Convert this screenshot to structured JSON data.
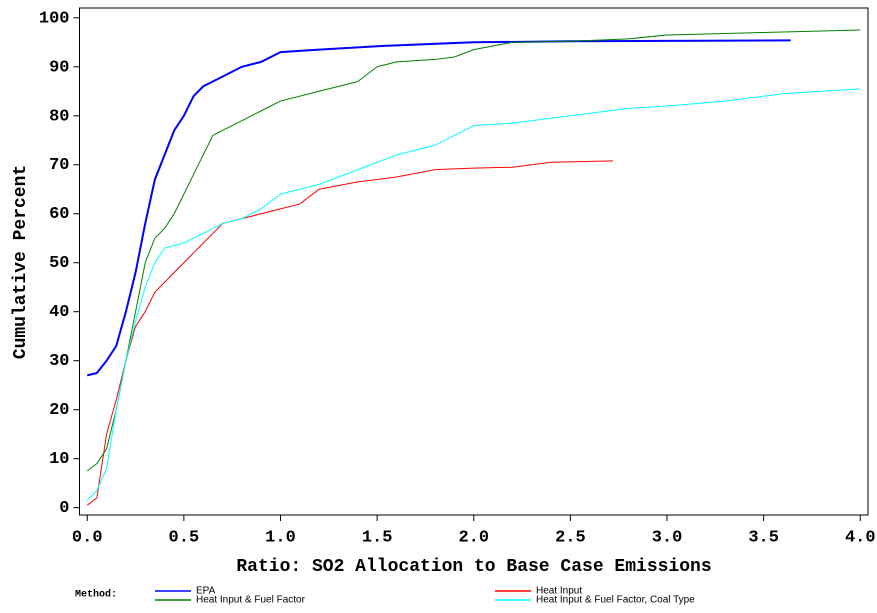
{
  "chart_data": {
    "type": "line",
    "x_label": "Ratio: SO2 Allocation to Base Case Emissions",
    "y_label": "Cumulative Percent",
    "legend_title": "Method:",
    "xlim": [
      -0.04,
      4.04
    ],
    "ylim": [
      -1.5,
      102
    ],
    "xticks": [
      {
        "value": 0,
        "label": "0.0"
      },
      0.5,
      {
        "value": 1,
        "label": "1.0"
      },
      1.5,
      {
        "value": 2,
        "label": "2.0"
      },
      2.5,
      {
        "value": 3,
        "label": "3.0"
      },
      3.5,
      {
        "value": 4,
        "label": "4.0"
      }
    ],
    "yticks": [
      0,
      10,
      20,
      30,
      40,
      50,
      60,
      70,
      80,
      90,
      100
    ],
    "series": [
      {
        "name": "EPA",
        "color": "#0000ff",
        "x": [
          0,
          0.05,
          0.1,
          0.15,
          0.2,
          0.25,
          0.3,
          0.35,
          0.4,
          0.45,
          0.5,
          0.55,
          0.6,
          0.7,
          0.8,
          0.9,
          1.0,
          1.2,
          1.5,
          2.0,
          2.5,
          3.0,
          3.64
        ],
        "values": [
          27,
          27.5,
          30,
          33,
          40,
          48,
          58,
          67,
          72,
          77,
          80,
          84,
          86,
          88,
          90,
          91,
          93,
          93.5,
          94.2,
          95,
          95.2,
          95.3,
          95.4
        ]
      },
      {
        "name": "Heat Input",
        "color": "#ff0000",
        "x": [
          0,
          0.05,
          0.1,
          0.15,
          0.2,
          0.25,
          0.3,
          0.35,
          0.4,
          0.45,
          0.5,
          0.55,
          0.6,
          0.65,
          0.7,
          0.8,
          0.9,
          1.0,
          1.1,
          1.2,
          1.4,
          1.6,
          1.8,
          2.0,
          2.2,
          2.4,
          2.72
        ],
        "values": [
          0.5,
          2,
          15,
          22,
          30,
          37,
          40,
          44,
          46,
          48,
          50,
          52,
          54,
          56,
          58,
          59,
          60,
          61,
          62,
          65,
          66.5,
          67.5,
          69,
          69.3,
          69.5,
          70.5,
          70.8
        ]
      },
      {
        "name": "Heat Input & Fuel Factor",
        "color": "#008000",
        "x": [
          0,
          0.05,
          0.1,
          0.15,
          0.2,
          0.25,
          0.3,
          0.35,
          0.4,
          0.45,
          0.5,
          0.55,
          0.6,
          0.65,
          0.7,
          0.8,
          0.9,
          1.0,
          1.2,
          1.4,
          1.5,
          1.6,
          1.8,
          1.9,
          2.0,
          2.2,
          2.5,
          2.8,
          3.0,
          3.5,
          4.0
        ],
        "values": [
          7.5,
          9,
          12,
          20,
          30,
          40,
          50,
          55,
          57,
          60,
          64,
          68,
          72,
          76,
          77,
          79,
          81,
          83,
          85,
          87,
          90,
          91,
          91.5,
          92,
          93.5,
          95,
          95.2,
          95.7,
          96.5,
          97,
          97.5
        ]
      },
      {
        "name": "Heat Input & Fuel Factor, Coal Type",
        "color": "#00ffff",
        "x": [
          0,
          0.05,
          0.1,
          0.15,
          0.2,
          0.25,
          0.3,
          0.35,
          0.4,
          0.5,
          0.6,
          0.7,
          0.8,
          0.9,
          1.0,
          1.2,
          1.4,
          1.6,
          1.8,
          2.0,
          2.2,
          2.5,
          2.8,
          3.0,
          3.3,
          3.6,
          4.0
        ],
        "values": [
          1.5,
          3.5,
          8,
          20,
          30,
          38,
          45,
          50,
          53,
          54,
          56,
          58,
          59,
          61,
          64,
          66,
          69,
          72,
          74,
          78,
          78.5,
          80,
          81.5,
          82,
          83,
          84.5,
          85.5
        ]
      }
    ]
  }
}
